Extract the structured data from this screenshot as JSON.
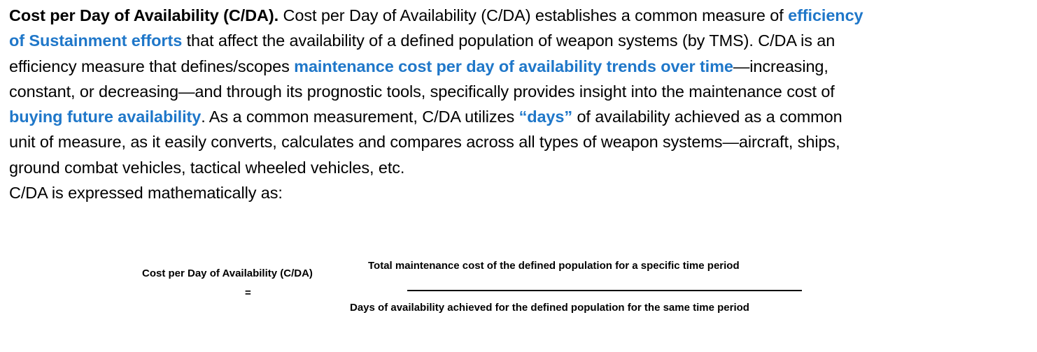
{
  "paragraph": {
    "lines": [
      {
        "lead": "Cost per Day of Availability (C/DA).",
        "text1": "  Cost per Day of Availability (C/DA) establishes a common measure of ",
        "hl1": "efficiency"
      },
      {
        "hl1": "of Sustainment efforts",
        "text1": " that affect the availability of a defined population of weapon systems (by TMS).  C/DA is an"
      },
      {
        "text1": "efficiency measure that defines/scopes ",
        "hl1": "maintenance cost per day of availability trends over time",
        "text2": "—increasing,"
      },
      {
        "text1": "constant, or decreasing—and through its prognostic tools, specifically provides insight into the maintenance cost of"
      },
      {
        "hl1": "buying future availability",
        "text1": ".  As a common measurement, C/DA utilizes ",
        "hl2": "“days”",
        "text2": " of availability achieved as a common"
      },
      {
        "text1": "unit of measure, as it easily converts, calculates and compares across all types of weapon systems—aircraft, ships,"
      },
      {
        "text1": "ground combat vehicles, tactical wheeled vehicles, etc."
      },
      {
        "text1": "C/DA is expressed mathematically as:"
      }
    ]
  },
  "formula": {
    "lhs": "Cost per Day of Availability (C/DA)",
    "equals": "=",
    "numerator": "Total maintenance cost of the defined population for a specific time period",
    "denominator": "Days of availability achieved for the defined population for the same time period"
  },
  "colors": {
    "highlight": "#1F77C9",
    "text": "#000000",
    "background": "#ffffff"
  }
}
